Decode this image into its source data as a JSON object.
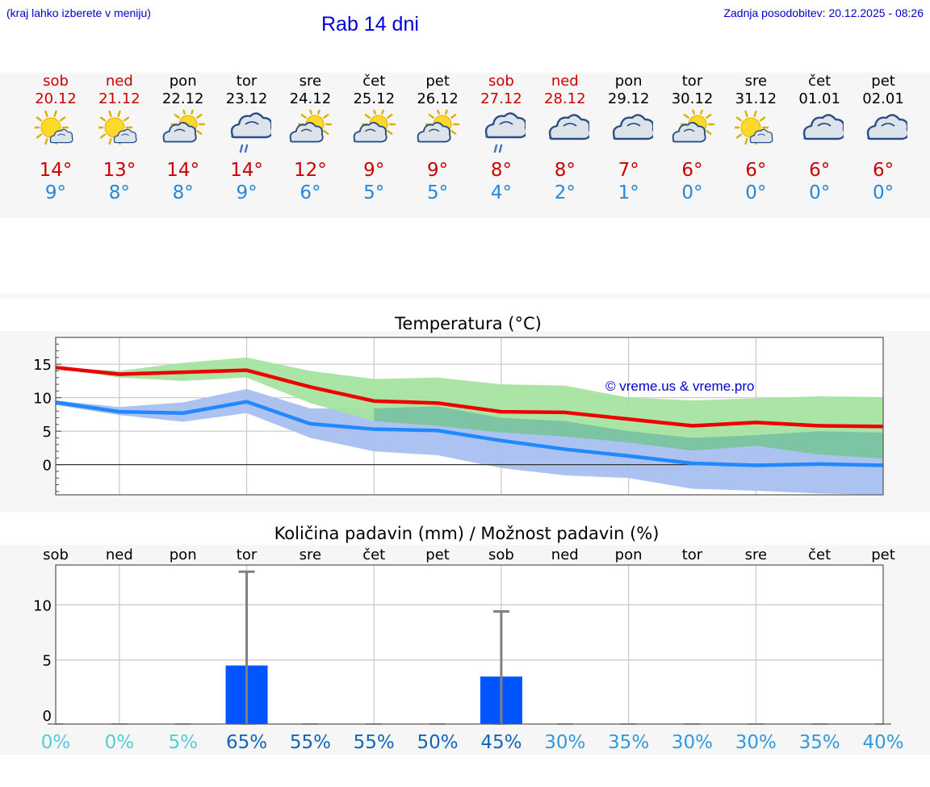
{
  "header": {
    "hint": "(kraj lahko izberete v meniju)",
    "title": "Rab 14 dni",
    "updated": "Zadnja posodobitev: 20.12.2025 - 08:26"
  },
  "days": [
    {
      "name": "sob",
      "date": "20.12",
      "weekend": true,
      "icon": "partly-sunny-icon",
      "tmax": "14°",
      "tmin": "9°"
    },
    {
      "name": "ned",
      "date": "21.12",
      "weekend": true,
      "icon": "partly-sunny-icon",
      "tmax": "13°",
      "tmin": "8°"
    },
    {
      "name": "pon",
      "date": "22.12",
      "weekend": false,
      "icon": "sun-behind-cloud-icon",
      "tmax": "14°",
      "tmin": "8°"
    },
    {
      "name": "tor",
      "date": "23.12",
      "weekend": false,
      "icon": "cloud-rain-icon",
      "tmax": "14°",
      "tmin": "9°"
    },
    {
      "name": "sre",
      "date": "24.12",
      "weekend": false,
      "icon": "sun-behind-cloud-icon",
      "tmax": "12°",
      "tmin": "6°"
    },
    {
      "name": "čet",
      "date": "25.12",
      "weekend": false,
      "icon": "sun-behind-cloud-icon",
      "tmax": "9°",
      "tmin": "5°"
    },
    {
      "name": "pet",
      "date": "26.12",
      "weekend": false,
      "icon": "sun-behind-cloud-icon",
      "tmax": "9°",
      "tmin": "5°"
    },
    {
      "name": "sob",
      "date": "27.12",
      "weekend": true,
      "icon": "cloud-rain-icon",
      "tmax": "8°",
      "tmin": "4°"
    },
    {
      "name": "ned",
      "date": "28.12",
      "weekend": true,
      "icon": "cloudy-icon",
      "tmax": "8°",
      "tmin": "2°"
    },
    {
      "name": "pon",
      "date": "29.12",
      "weekend": false,
      "icon": "cloudy-icon",
      "tmax": "7°",
      "tmin": "1°"
    },
    {
      "name": "tor",
      "date": "30.12",
      "weekend": false,
      "icon": "sun-behind-cloud-icon",
      "tmax": "6°",
      "tmin": "0°"
    },
    {
      "name": "sre",
      "date": "31.12",
      "weekend": false,
      "icon": "partly-sunny-icon",
      "tmax": "6°",
      "tmin": "0°"
    },
    {
      "name": "čet",
      "date": "01.01",
      "weekend": false,
      "icon": "cloudy-icon",
      "tmax": "6°",
      "tmin": "0°"
    },
    {
      "name": "pet",
      "date": "02.01",
      "weekend": false,
      "icon": "cloudy-icon",
      "tmax": "6°",
      "tmin": "0°"
    }
  ],
  "colors": {
    "tmax_line": "#ee0000",
    "tmin_line": "#2288ff",
    "tmax_band": "#a6e4a0",
    "tmin_band": "#a8c0f0",
    "overlap_band": "#7dc4a4",
    "precip_bar": "#0055ff",
    "whisker": "#808080",
    "prob_low": "#55ccdd",
    "prob_mid": "#3399dd",
    "prob_high": "#1166bb"
  },
  "chart_data": [
    {
      "type": "line",
      "title": "Temperatura (°C)",
      "watermark": "© vreme.us & vreme.pro",
      "x": [
        0,
        1,
        2,
        3,
        4,
        5,
        6,
        7,
        8,
        9,
        10,
        11,
        12,
        13
      ],
      "ylim": [
        -4.5,
        19
      ],
      "yticks": [
        0,
        5,
        10,
        15
      ],
      "grid": true,
      "series": [
        {
          "name": "tmax",
          "values": [
            14.5,
            13.5,
            13.8,
            14.1,
            11.6,
            9.5,
            9.2,
            7.9,
            7.8,
            6.8,
            5.8,
            6.3,
            5.8,
            5.7
          ]
        },
        {
          "name": "tmax_upper",
          "values": [
            14.5,
            14.0,
            15.2,
            16.0,
            14.0,
            12.8,
            13.0,
            12.0,
            11.8,
            10.0,
            9.6,
            9.9,
            10.2,
            10.1
          ]
        },
        {
          "name": "tmax_lower",
          "values": [
            14.5,
            13.0,
            12.5,
            13.0,
            9.2,
            6.5,
            5.8,
            4.8,
            4.2,
            3.3,
            2.1,
            2.8,
            1.5,
            0.9
          ]
        },
        {
          "name": "tmin",
          "values": [
            9.3,
            7.9,
            7.7,
            9.4,
            6.1,
            5.3,
            5.1,
            3.6,
            2.3,
            1.3,
            0.2,
            -0.1,
            0.1,
            -0.1
          ]
        },
        {
          "name": "tmin_upper",
          "values": [
            9.6,
            8.6,
            9.3,
            11.3,
            8.4,
            8.4,
            8.7,
            7.0,
            6.5,
            5.0,
            4.0,
            4.4,
            5.0,
            4.8
          ]
        },
        {
          "name": "tmin_lower",
          "values": [
            8.9,
            7.4,
            6.4,
            7.7,
            4.0,
            2.0,
            1.4,
            -0.5,
            -1.6,
            -2.0,
            -3.6,
            -3.9,
            -4.3,
            -4.5
          ]
        }
      ]
    },
    {
      "type": "bar",
      "title": "Količina padavin (mm) / Možnost padavin (%)",
      "categories": [
        "sob",
        "ned",
        "pon",
        "tor",
        "sre",
        "čet",
        "pet",
        "sob",
        "ned",
        "pon",
        "tor",
        "sre",
        "čet",
        "pet"
      ],
      "values": [
        0,
        0,
        0,
        4.5,
        0,
        0,
        0,
        3.5,
        0,
        0,
        0,
        0,
        0,
        0
      ],
      "max_values": [
        0,
        0,
        0,
        13.0,
        0,
        0,
        0,
        9.4,
        0,
        0,
        0,
        0,
        0,
        0
      ],
      "probability": [
        "0%",
        "0%",
        "5%",
        "65%",
        "55%",
        "55%",
        "50%",
        "45%",
        "30%",
        "35%",
        "30%",
        "30%",
        "35%",
        "40%"
      ],
      "probability_values": [
        0,
        0,
        5,
        65,
        55,
        55,
        50,
        45,
        30,
        35,
        30,
        30,
        35,
        40
      ],
      "ylim": [
        -0.8,
        13.6
      ],
      "yticks": [
        0,
        5,
        10
      ],
      "grid": true
    }
  ]
}
